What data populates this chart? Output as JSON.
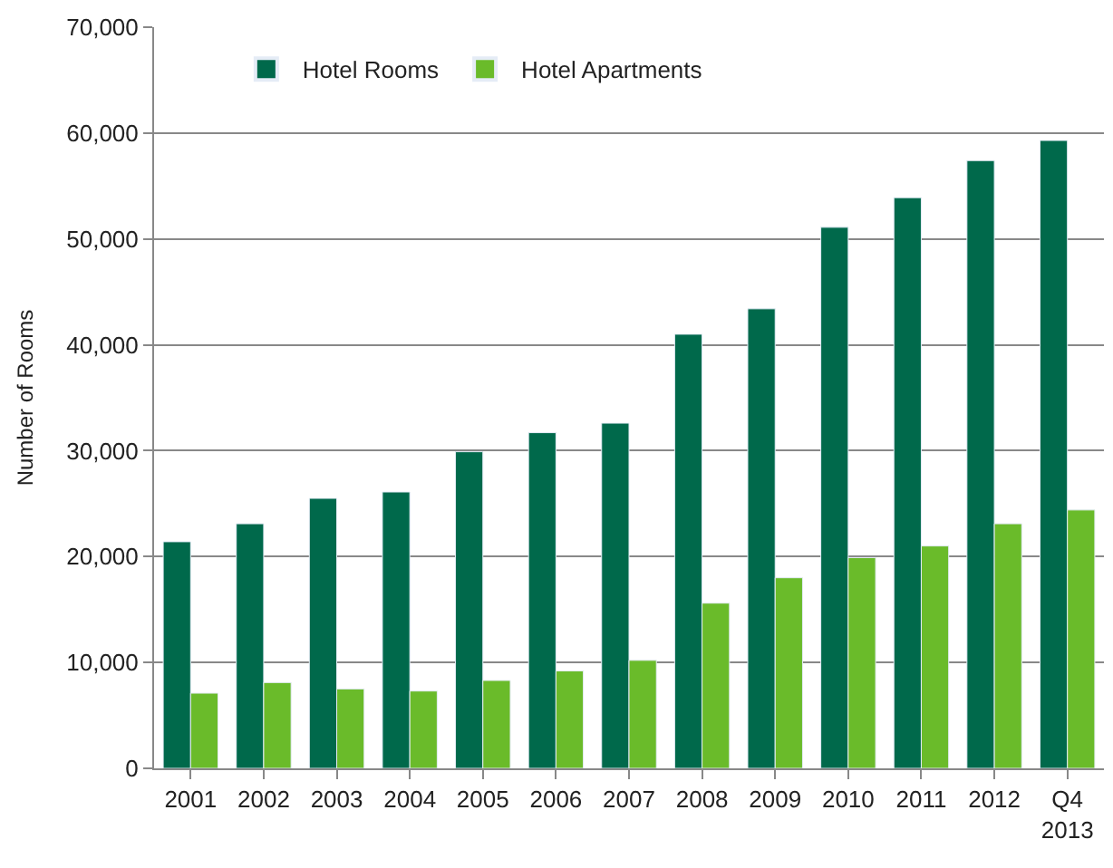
{
  "chart_data": {
    "type": "bar",
    "ylabel": "Number of Rooms",
    "categories": [
      "2001",
      "2002",
      "2003",
      "2004",
      "2005",
      "2006",
      "2007",
      "2008",
      "2009",
      "2010",
      "2011",
      "2012",
      "Q4\n2013"
    ],
    "series": [
      {
        "name": "Hotel Rooms",
        "color": "#00694b",
        "values": [
          21400,
          23100,
          25500,
          26100,
          29900,
          31700,
          32600,
          41000,
          43400,
          51100,
          53900,
          57400,
          59300
        ]
      },
      {
        "name": "Hotel Apartments",
        "color": "#6abb2a",
        "values": [
          7100,
          8100,
          7500,
          7300,
          8300,
          9200,
          10200,
          15600,
          18000,
          19900,
          21000,
          23100,
          24400
        ]
      }
    ],
    "ylim": [
      0,
      70000
    ],
    "yticks": [
      {
        "value": 0,
        "label": "0"
      },
      {
        "value": 10000,
        "label": "10,000"
      },
      {
        "value": 20000,
        "label": "20,000"
      },
      {
        "value": 30000,
        "label": "30,000"
      },
      {
        "value": 40000,
        "label": "40,000"
      },
      {
        "value": 50000,
        "label": "50,000"
      },
      {
        "value": 60000,
        "label": "60,000"
      },
      {
        "value": 70000,
        "label": "70,000"
      }
    ],
    "grid": "y",
    "legend": "top left"
  }
}
